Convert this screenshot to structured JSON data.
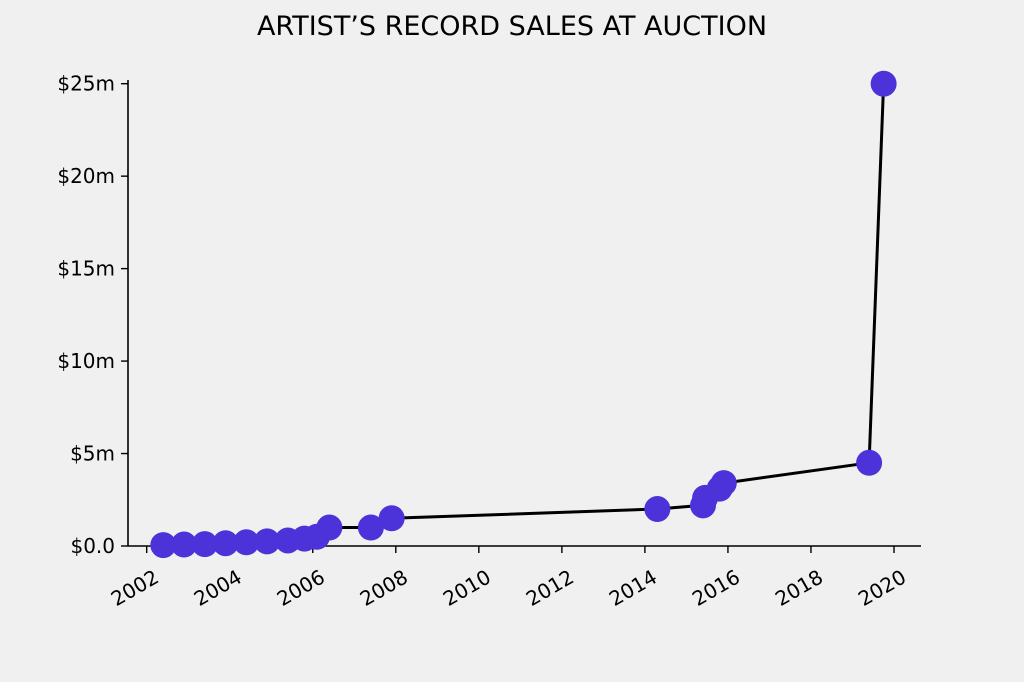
{
  "chart_data": {
    "type": "line",
    "title": "ARTIST’S RECORD SALES AT AUCTION",
    "xlabel": "",
    "ylabel": "",
    "grid": false,
    "legend": "none",
    "x_axis": {
      "unit": "year",
      "range": [
        2001.55,
        2020.65
      ],
      "ticks": [
        2002,
        2004,
        2006,
        2008,
        2010,
        2012,
        2014,
        2016,
        2018,
        2020
      ],
      "tick_labels": [
        "2002",
        "2004",
        "2006",
        "2008",
        "2010",
        "2012",
        "2014",
        "2016",
        "2018",
        "2020"
      ],
      "tick_label_rotation": -30
    },
    "y_axis": {
      "unit": "USD millions",
      "range": [
        0,
        25.2
      ],
      "ticks": [
        0,
        5,
        10,
        15,
        20,
        25
      ],
      "tick_labels": [
        "$0.0",
        "$5m",
        "$10m",
        "$15m",
        "$20m",
        "$25m"
      ]
    },
    "series": [
      {
        "color": "#4b33d9",
        "line_color": "#000000",
        "points": [
          {
            "x": 2002.4,
            "y": 0.05
          },
          {
            "x": 2002.9,
            "y": 0.08
          },
          {
            "x": 2003.4,
            "y": 0.1
          },
          {
            "x": 2003.9,
            "y": 0.15
          },
          {
            "x": 2004.4,
            "y": 0.2
          },
          {
            "x": 2004.9,
            "y": 0.25
          },
          {
            "x": 2005.4,
            "y": 0.3
          },
          {
            "x": 2005.8,
            "y": 0.4
          },
          {
            "x": 2006.1,
            "y": 0.5
          },
          {
            "x": 2006.4,
            "y": 1.0
          },
          {
            "x": 2007.4,
            "y": 1.0
          },
          {
            "x": 2007.9,
            "y": 1.5
          },
          {
            "x": 2014.3,
            "y": 2.0
          },
          {
            "x": 2015.4,
            "y": 2.2
          },
          {
            "x": 2015.45,
            "y": 2.6
          },
          {
            "x": 2015.8,
            "y": 3.1
          },
          {
            "x": 2015.9,
            "y": 3.4
          },
          {
            "x": 2019.4,
            "y": 4.5
          },
          {
            "x": 2019.75,
            "y": 25.0
          }
        ]
      }
    ]
  }
}
